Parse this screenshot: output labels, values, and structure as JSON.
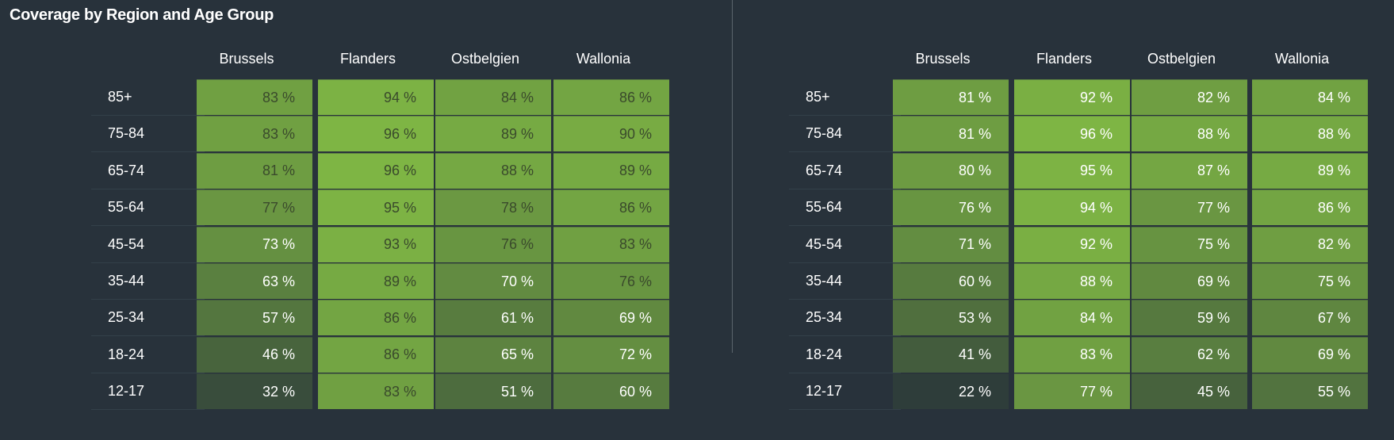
{
  "title": "Coverage by Region and Age Group",
  "chart_data": [
    {
      "type": "heatmap",
      "title": "Coverage by Region and Age Group",
      "columns": [
        "Brussels",
        "Flanders",
        "Ostbelgien",
        "Wallonia"
      ],
      "rows": [
        "85+",
        "75-84",
        "65-74",
        "55-64",
        "45-54",
        "35-44",
        "25-34",
        "18-24",
        "12-17"
      ],
      "unit": "%",
      "values": [
        [
          83,
          94,
          84,
          86
        ],
        [
          83,
          96,
          89,
          90
        ],
        [
          81,
          96,
          88,
          89
        ],
        [
          77,
          95,
          78,
          86
        ],
        [
          73,
          93,
          76,
          83
        ],
        [
          63,
          89,
          70,
          76
        ],
        [
          57,
          86,
          61,
          69
        ],
        [
          46,
          86,
          65,
          72
        ],
        [
          32,
          83,
          51,
          60
        ]
      ],
      "labels": [
        [
          "83 %",
          "94 %",
          "84 %",
          "86 %"
        ],
        [
          "83 %",
          "96 %",
          "89 %",
          "90 %"
        ],
        [
          "81 %",
          "96 %",
          "88 %",
          "89 %"
        ],
        [
          "77 %",
          "95 %",
          "78 %",
          "86 %"
        ],
        [
          "73 %",
          "93 %",
          "76 %",
          "83 %"
        ],
        [
          "63 %",
          "89 %",
          "70 %",
          "76 %"
        ],
        [
          "57 %",
          "86 %",
          "61 %",
          "69 %"
        ],
        [
          "46 %",
          "86 %",
          "65 %",
          "72 %"
        ],
        [
          "32 %",
          "83 %",
          "51 %",
          "60 %"
        ]
      ]
    },
    {
      "type": "heatmap",
      "columns": [
        "Brussels",
        "Flanders",
        "Ostbelgien",
        "Wallonia"
      ],
      "rows": [
        "85+",
        "75-84",
        "65-74",
        "55-64",
        "45-54",
        "35-44",
        "25-34",
        "18-24",
        "12-17"
      ],
      "unit": "%",
      "values": [
        [
          81,
          92,
          82,
          84
        ],
        [
          81,
          96,
          88,
          88
        ],
        [
          80,
          95,
          87,
          89
        ],
        [
          76,
          94,
          77,
          86
        ],
        [
          71,
          92,
          75,
          82
        ],
        [
          60,
          88,
          69,
          75
        ],
        [
          53,
          84,
          59,
          67
        ],
        [
          41,
          83,
          62,
          69
        ],
        [
          22,
          77,
          45,
          55
        ]
      ],
      "labels": [
        [
          "81 %",
          "92 %",
          "82 %",
          "84 %"
        ],
        [
          "81 %",
          "96 %",
          "88 %",
          "88 %"
        ],
        [
          "80 %",
          "95 %",
          "87 %",
          "89 %"
        ],
        [
          "76 %",
          "94 %",
          "77 %",
          "86 %"
        ],
        [
          "71 %",
          "92 %",
          "75 %",
          "82 %"
        ],
        [
          "60 %",
          "88 %",
          "69 %",
          "75 %"
        ],
        [
          "53 %",
          "84 %",
          "59 %",
          "67 %"
        ],
        [
          "41 %",
          "83 %",
          "62 %",
          "69 %"
        ],
        [
          "22 %",
          "77 %",
          "45 %",
          "55 %"
        ]
      ]
    }
  ],
  "colors": {
    "background": "#28323b",
    "cell_low": "#2c3a3a",
    "cell_high": "#7eb544",
    "dark_text": "#3a4a2c",
    "light_text": "#ffffff"
  }
}
